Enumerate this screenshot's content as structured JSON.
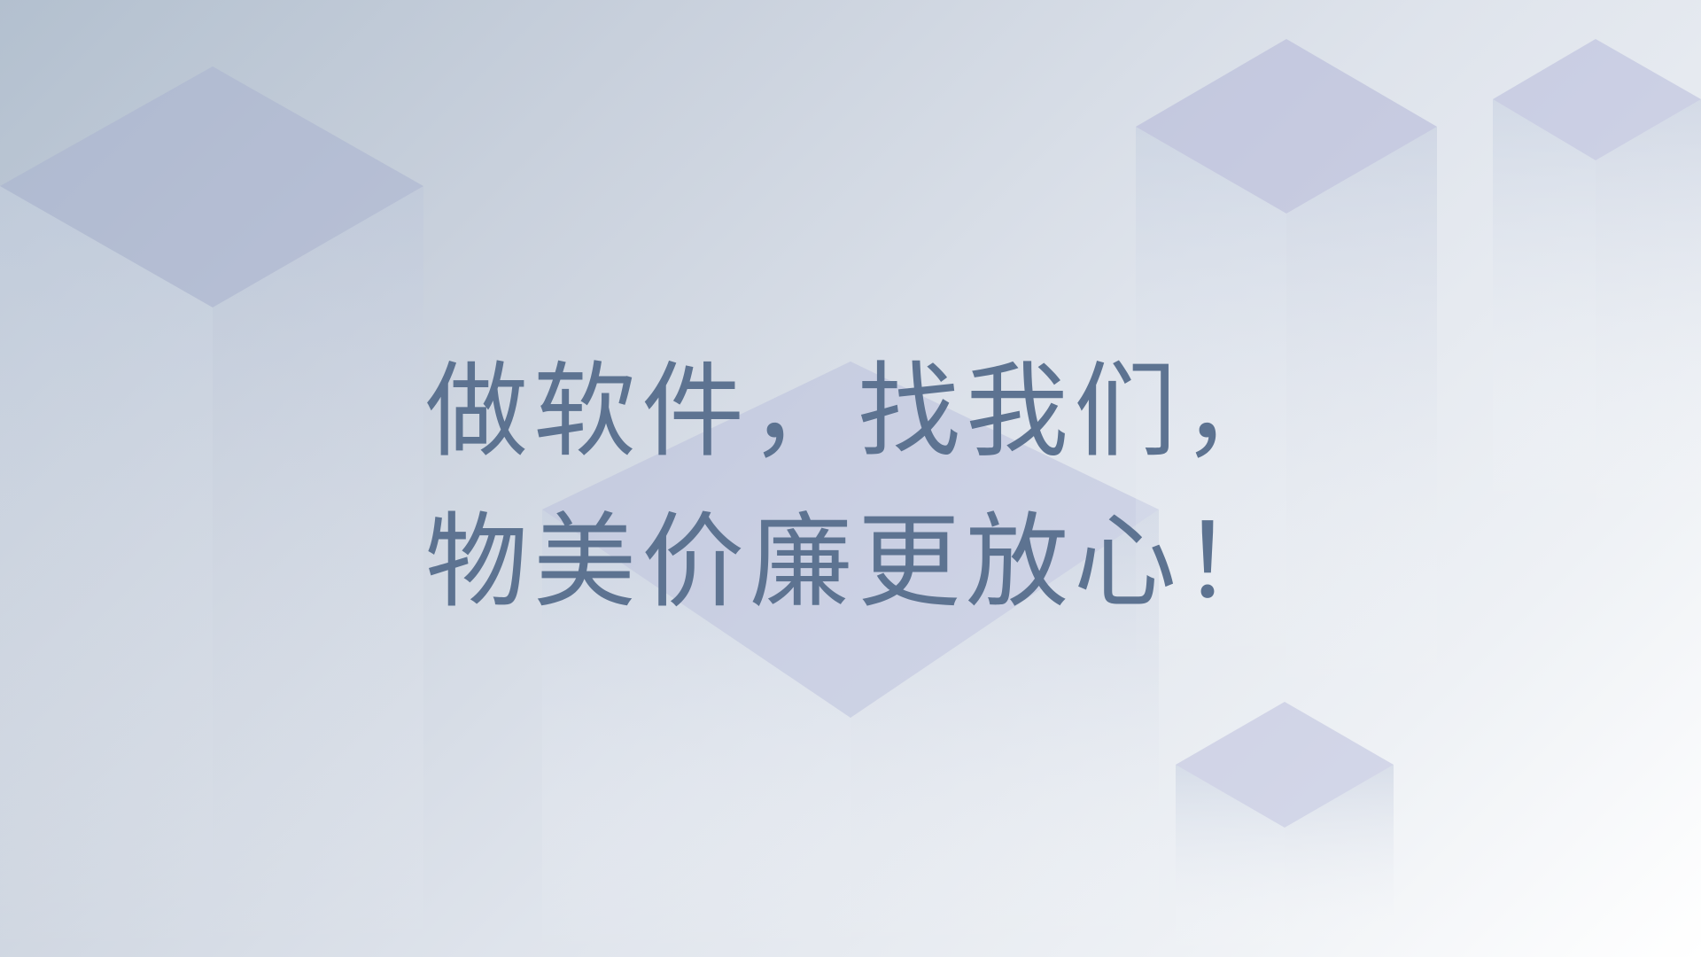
{
  "slide": {
    "headline_line1": "做软件，找我们，",
    "headline_line2": "物美价廉更放心！"
  },
  "colors": {
    "text": "#5d7391",
    "cube_top": "#b3b8d6",
    "cube_side": "#c5cfe0",
    "background_light": "#ffffff",
    "background_dark": "#b3c0cf"
  }
}
